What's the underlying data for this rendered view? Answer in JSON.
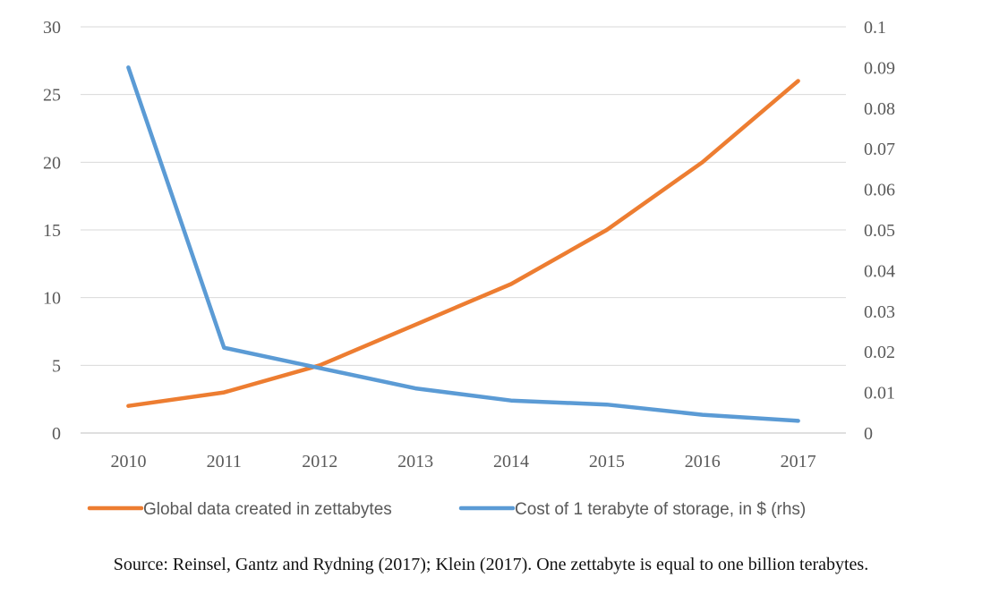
{
  "chart_data": {
    "type": "line",
    "title": "",
    "categories": [
      "2010",
      "2011",
      "2012",
      "2013",
      "2014",
      "2015",
      "2016",
      "2017"
    ],
    "y_left": {
      "ylim": [
        0,
        30
      ],
      "ticks": [
        0,
        5,
        10,
        15,
        20,
        25,
        30
      ],
      "tick_labels": [
        "0",
        "5",
        "10",
        "15",
        "20",
        "25",
        "30"
      ]
    },
    "y_right": {
      "ylim": [
        0,
        0.1
      ],
      "ticks": [
        0,
        0.01,
        0.02,
        0.03,
        0.04,
        0.05,
        0.06,
        0.07,
        0.08,
        0.09,
        0.1
      ],
      "tick_labels": [
        "0",
        "0.01",
        "0.02",
        "0.03",
        "0.04",
        "0.05",
        "0.06",
        "0.07",
        "0.08",
        "0.09",
        "0.1"
      ]
    },
    "grid": true,
    "legend_position": "bottom",
    "series": [
      {
        "name": "Global data created in zettabytes",
        "axis": "left",
        "color": "#ED7D31",
        "values": [
          2.0,
          3.0,
          5.0,
          8.0,
          11.0,
          15.0,
          20.0,
          26.0
        ]
      },
      {
        "name": "Cost of 1 terabyte of storage, in $ (rhs)",
        "axis": "right",
        "color": "#5B9BD5",
        "values": [
          0.09,
          0.021,
          0.016,
          0.011,
          0.008,
          0.007,
          0.0045,
          0.003
        ]
      }
    ]
  },
  "source_note": "Source: Reinsel, Gantz and Rydning (2017); Klein (2017). One zettabyte is equal to one billion terabytes."
}
